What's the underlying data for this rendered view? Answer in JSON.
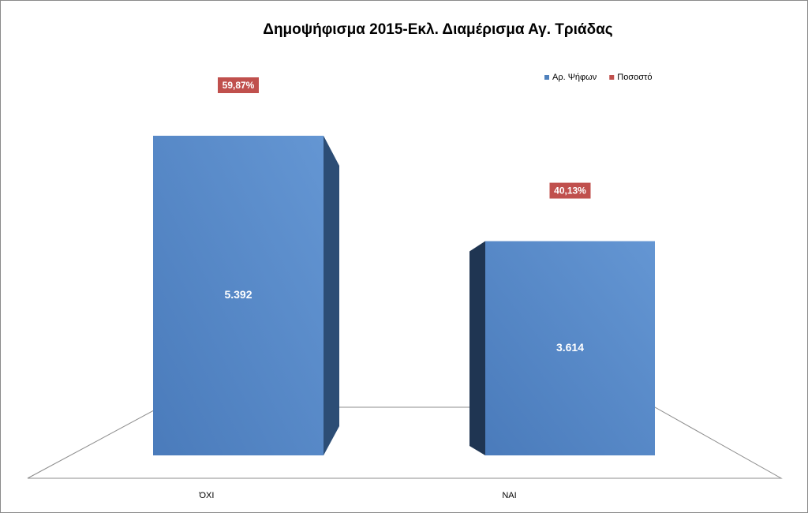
{
  "chart_data": {
    "type": "bar3d",
    "title": "Δημοψήφισμα 2015-Εκλ. Διαμέρισμα Αγ. Τριάδας",
    "categories": [
      "ΌΧΙ",
      "ΝΑΙ"
    ],
    "series": [
      {
        "name": "Αρ. Ψήφων",
        "color": "#4f81bd",
        "values": [
          5392,
          3614
        ],
        "value_labels": [
          "5.392",
          "3.614"
        ]
      },
      {
        "name": "Ποσοστό",
        "color": "#c0504d",
        "values": [
          59.87,
          40.13
        ],
        "value_labels": [
          "59,87%",
          "40,13%"
        ]
      }
    ],
    "legend": "top-right"
  }
}
